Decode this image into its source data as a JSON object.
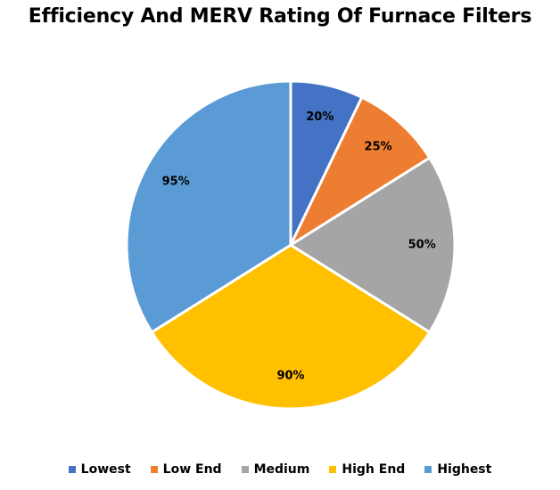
{
  "chart_data": {
    "type": "pie",
    "title": "Efficiency And MERV Rating Of Furnace Filters",
    "legend_position": "bottom",
    "slices": [
      {
        "name": "Lowest",
        "value": 20,
        "label": "20%",
        "color": "#4472C4"
      },
      {
        "name": "Low End",
        "value": 25,
        "label": "25%",
        "color": "#ED7D31"
      },
      {
        "name": "Medium",
        "value": 50,
        "label": "50%",
        "color": "#A5A5A5"
      },
      {
        "name": "High End",
        "value": 90,
        "label": "90%",
        "color": "#FFC000"
      },
      {
        "name": "Highest",
        "value": 95,
        "label": "95%",
        "color": "#5B9BD5"
      }
    ]
  }
}
